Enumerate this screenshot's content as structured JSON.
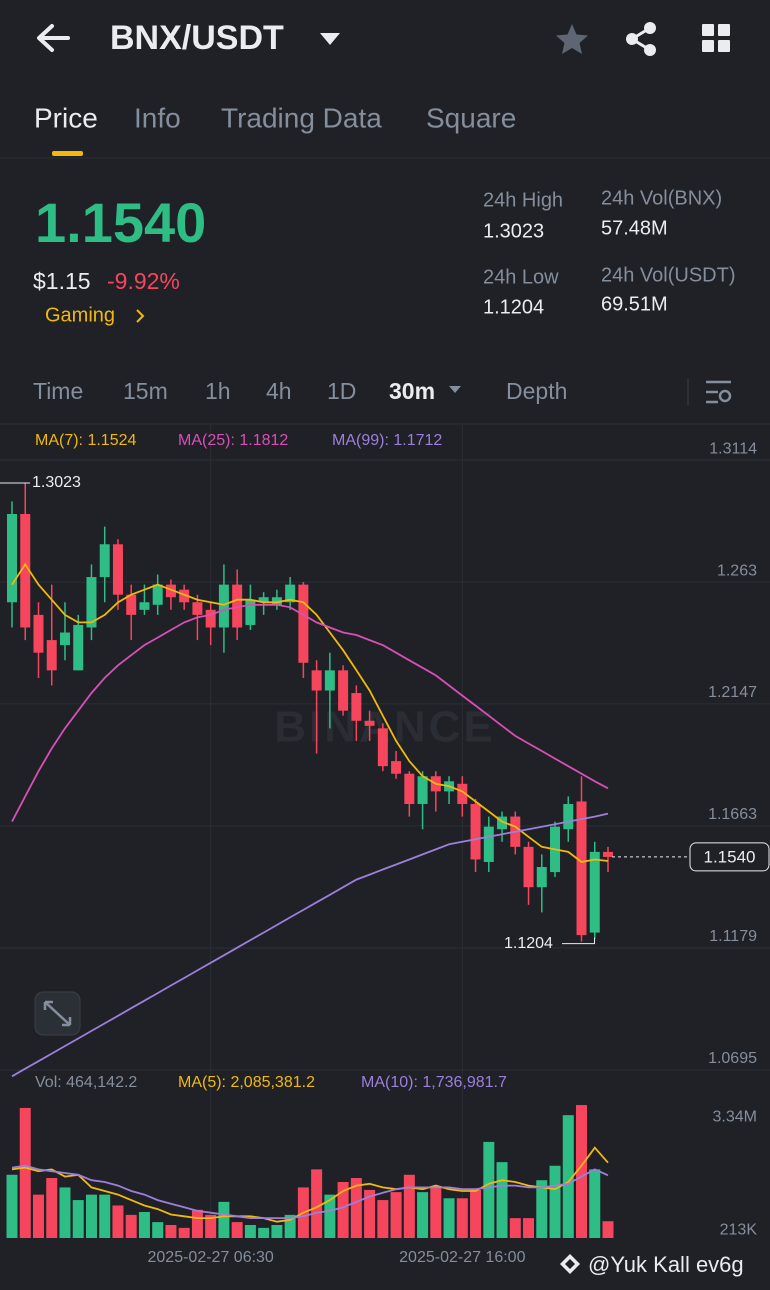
{
  "header": {
    "pair": "BNX/USDT"
  },
  "tabs": [
    "Price",
    "Info",
    "Trading Data",
    "Square"
  ],
  "price": {
    "last": "1.1540",
    "usd": "$1.15",
    "change": "-9.92%",
    "sector": "Gaming"
  },
  "stats": [
    {
      "label": "24h High",
      "value": "1.3023"
    },
    {
      "label": "24h Vol(BNX)",
      "value": "57.48M"
    },
    {
      "label": "24h Low",
      "value": "1.1204"
    },
    {
      "label": "24h Vol(USDT)",
      "value": "69.51M"
    }
  ],
  "intervals": [
    "Time",
    "15m",
    "1h",
    "4h",
    "1D",
    "30m",
    "Depth"
  ],
  "watermark": "@Yuk Kall ev6g",
  "chart_data": [
    {
      "type": "candlestick",
      "up_color": "#2ebd85",
      "down_color": "#f6465d",
      "categories": [
        null,
        null,
        null,
        null,
        null,
        null,
        null,
        null,
        null,
        null,
        null,
        null,
        null,
        null,
        null,
        "2025-02-27 06:30",
        null,
        null,
        null,
        null,
        null,
        null,
        null,
        null,
        null,
        null,
        null,
        null,
        null,
        null,
        null,
        null,
        null,
        null,
        "2025-02-27 16:00",
        null,
        null,
        null,
        null,
        null,
        null,
        null,
        null,
        null,
        null,
        null
      ],
      "open": [
        1.255,
        1.29,
        1.25,
        1.24,
        1.238,
        1.228,
        1.245,
        1.265,
        1.278,
        1.258,
        1.252,
        1.254,
        1.262,
        1.26,
        1.255,
        1.252,
        1.245,
        1.262,
        1.246,
        1.255,
        1.254,
        1.255,
        1.262,
        1.228,
        1.22,
        1.228,
        1.219,
        1.208,
        1.205,
        1.192,
        1.187,
        1.175,
        1.186,
        1.18,
        1.183,
        1.175,
        1.152,
        1.165,
        1.17,
        1.158,
        1.142,
        1.148,
        1.165,
        1.176,
        1.124,
        1.156
      ],
      "high": [
        1.295,
        1.3023,
        1.255,
        1.262,
        1.255,
        1.25,
        1.27,
        1.285,
        1.28,
        1.262,
        1.262,
        1.266,
        1.264,
        1.262,
        1.258,
        1.255,
        1.27,
        1.268,
        1.262,
        1.259,
        1.26,
        1.265,
        1.263,
        1.232,
        1.235,
        1.23,
        1.222,
        1.212,
        1.207,
        1.196,
        1.188,
        1.188,
        1.188,
        1.186,
        1.186,
        1.177,
        1.17,
        1.172,
        1.172,
        1.16,
        1.155,
        1.168,
        1.178,
        1.186,
        1.16,
        1.158
      ],
      "low": [
        1.245,
        1.24,
        1.225,
        1.222,
        1.232,
        1.228,
        1.24,
        1.255,
        1.252,
        1.24,
        1.25,
        1.25,
        1.252,
        1.252,
        1.24,
        1.238,
        1.235,
        1.24,
        1.244,
        1.25,
        1.252,
        1.252,
        1.225,
        1.195,
        1.205,
        1.21,
        1.2,
        1.2,
        1.188,
        1.185,
        1.17,
        1.165,
        1.172,
        1.175,
        1.17,
        1.148,
        1.148,
        1.16,
        1.155,
        1.135,
        1.132,
        1.146,
        1.16,
        1.1204,
        1.1215,
        1.148
      ],
      "close": [
        1.29,
        1.245,
        1.235,
        1.228,
        1.243,
        1.246,
        1.265,
        1.278,
        1.258,
        1.25,
        1.255,
        1.262,
        1.257,
        1.255,
        1.25,
        1.245,
        1.262,
        1.245,
        1.256,
        1.257,
        1.257,
        1.262,
        1.231,
        1.22,
        1.228,
        1.212,
        1.208,
        1.206,
        1.19,
        1.187,
        1.175,
        1.186,
        1.18,
        1.184,
        1.175,
        1.153,
        1.166,
        1.17,
        1.158,
        1.142,
        1.15,
        1.166,
        1.175,
        1.123,
        1.156,
        1.154
      ],
      "series": [
        {
          "color": "#f0b90b",
          "values": [
            1.262,
            1.27,
            1.262,
            1.256,
            1.25,
            1.247,
            1.247,
            1.25,
            1.255,
            1.258,
            1.26,
            1.262,
            1.26,
            1.258,
            1.256,
            1.255,
            1.254,
            1.256,
            1.256,
            1.255,
            1.255,
            1.256,
            1.255,
            1.25,
            1.243,
            1.236,
            1.228,
            1.22,
            1.21,
            1.2,
            1.192,
            1.186,
            1.183,
            1.182,
            1.18,
            1.176,
            1.172,
            1.168,
            1.166,
            1.162,
            1.158,
            1.157,
            1.156,
            1.152,
            1.153,
            1.1524
          ]
        },
        {
          "color": "#d84fb6",
          "values": [
            1.168,
            1.178,
            1.188,
            1.197,
            1.205,
            1.212,
            1.219,
            1.225,
            1.23,
            1.234,
            1.238,
            1.241,
            1.244,
            1.247,
            1.249,
            1.25,
            1.252,
            1.253,
            1.254,
            1.254,
            1.254,
            1.253,
            1.25,
            1.247,
            1.245,
            1.243,
            1.242,
            1.24,
            1.238,
            1.235,
            1.232,
            1.229,
            1.226,
            1.222,
            1.218,
            1.214,
            1.21,
            1.206,
            1.202,
            1.199,
            1.196,
            1.193,
            1.19,
            1.187,
            1.184,
            1.1812
          ]
        },
        {
          "color": "#9d7fdb",
          "values": [
            1.067,
            1.07,
            1.073,
            1.076,
            1.079,
            1.082,
            1.085,
            1.088,
            1.091,
            1.094,
            1.097,
            1.1,
            1.103,
            1.106,
            1.109,
            1.112,
            1.115,
            1.118,
            1.121,
            1.124,
            1.127,
            1.13,
            1.133,
            1.136,
            1.139,
            1.142,
            1.145,
            1.147,
            1.149,
            1.151,
            1.153,
            1.155,
            1.157,
            1.159,
            1.16,
            1.161,
            1.162,
            1.163,
            1.164,
            1.165,
            1.166,
            1.167,
            1.168,
            1.169,
            1.17,
            1.1712
          ]
        }
      ],
      "legend": [
        "MA(7): 1.1524",
        "MA(25): 1.1812",
        "MA(99): 1.1712"
      ],
      "ylim": [
        1.0695,
        1.3253
      ],
      "yticks": [
        1.3114,
        1.263,
        1.2147,
        1.1663,
        1.1179,
        1.0695
      ],
      "max_label": "1.3023",
      "min_label": "1.1204",
      "last_price": {
        "value": 1.154,
        "label": "1.1540"
      },
      "grid": true
    },
    {
      "type": "bar",
      "values": [
        1750000,
        3600000,
        1200000,
        1660000,
        1400000,
        1050000,
        1200000,
        1200000,
        900000,
        640000,
        720000,
        440000,
        360000,
        280000,
        780000,
        640000,
        1000000,
        440000,
        360000,
        280000,
        360000,
        640000,
        1400000,
        1900000,
        1200000,
        1550000,
        1660000,
        1330000,
        1050000,
        1270000,
        1750000,
        1270000,
        1400000,
        1100000,
        1100000,
        1330000,
        2660000,
        2100000,
        550000,
        550000,
        1600000,
        2000000,
        3400000,
        3680000,
        1900000,
        464142.2
      ],
      "series": [
        {
          "color": "#f0b90b",
          "values": [
            1900000,
            1950000,
            1850000,
            1900000,
            1700000,
            1750000,
            1400000,
            1300000,
            1200000,
            1050000,
            900000,
            800000,
            650000,
            600000,
            550000,
            550000,
            600000,
            600000,
            600000,
            550000,
            450000,
            500000,
            700000,
            850000,
            1050000,
            1300000,
            1450000,
            1500000,
            1400000,
            1350000,
            1400000,
            1350000,
            1450000,
            1350000,
            1300000,
            1300000,
            1500000,
            1600000,
            1550000,
            1450000,
            1400000,
            1350000,
            1550000,
            2000000,
            2500000,
            2085381.2
          ]
        },
        {
          "color": "#9d7fdb",
          "values": [
            1950000,
            2000000,
            1900000,
            1850000,
            1800000,
            1750000,
            1600000,
            1550000,
            1450000,
            1300000,
            1200000,
            1050000,
            950000,
            850000,
            750000,
            700000,
            650000,
            600000,
            550000,
            550000,
            550000,
            550000,
            600000,
            700000,
            750000,
            850000,
            1000000,
            1150000,
            1250000,
            1350000,
            1400000,
            1400000,
            1400000,
            1400000,
            1350000,
            1350000,
            1400000,
            1450000,
            1450000,
            1400000,
            1400000,
            1450000,
            1500000,
            1700000,
            1900000,
            1736981.7
          ]
        }
      ],
      "legend": [
        "Vol: 464,142.2",
        "MA(5): 2,085,381.2",
        "MA(10): 1,736,981.7"
      ],
      "ylim": [
        0,
        3820000
      ],
      "yticks": [
        {
          "value": 3340000,
          "label": "3.34M"
        },
        {
          "value": 213000,
          "label": "213K"
        }
      ]
    }
  ]
}
